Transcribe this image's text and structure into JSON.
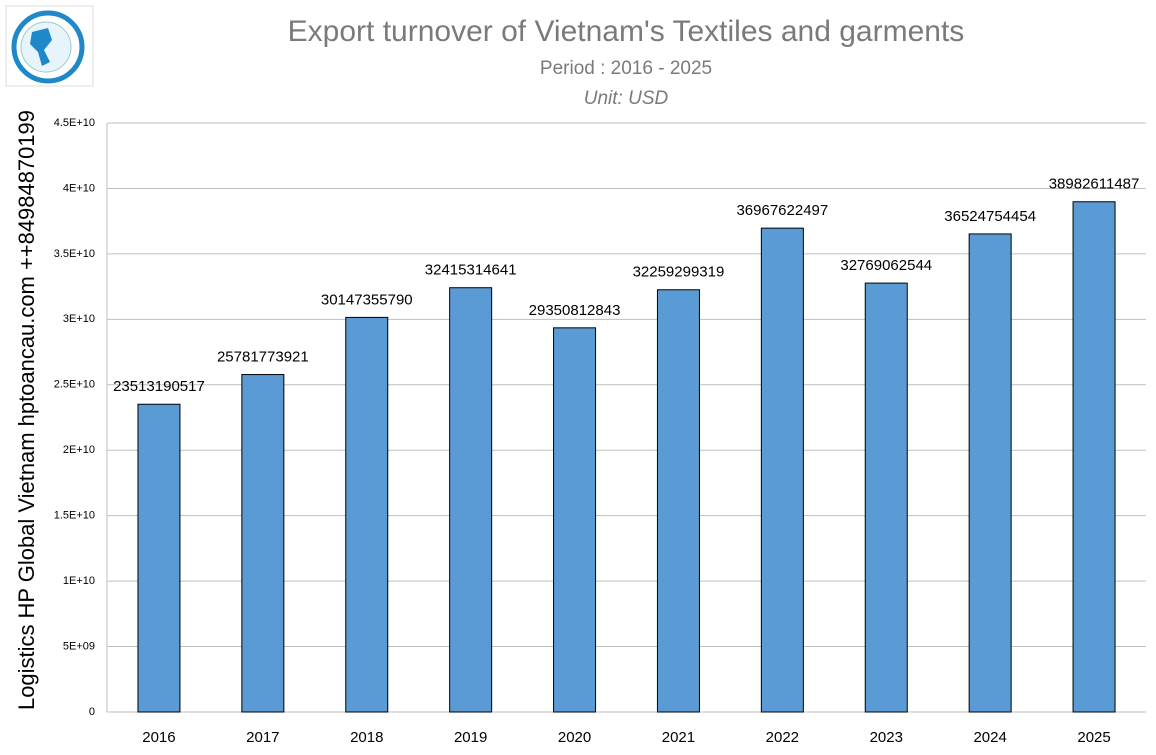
{
  "chart_data": {
    "type": "bar",
    "title": "Export turnover of Vietnam's Textiles and garments",
    "subtitle": "Period : 2016 - 2025",
    "unit": "Unit: USD",
    "y_label": "Logistics HP Global Vietnam hptoancau.com ++84984870199",
    "categories": [
      "2016",
      "2017",
      "2018",
      "2019",
      "2020",
      "2021",
      "2022",
      "2023",
      "2024",
      "2025"
    ],
    "values": [
      23513190517,
      25781773921,
      30147355790,
      32415314641,
      29350812843,
      32259299319,
      36967622497,
      32769062544,
      36524754454,
      38982611487
    ],
    "color": "#5b9bd5",
    "ylim": [
      0,
      45000000000
    ],
    "yticks": [
      0,
      {
        "value": 5000000000,
        "label": "5E+09"
      },
      {
        "value": 10000000000,
        "label": "1E+10"
      },
      {
        "value": 15000000000,
        "label": "1.5E+10"
      },
      {
        "value": 20000000000,
        "label": "2E+10"
      },
      {
        "value": 25000000000,
        "label": "2.5E+10"
      },
      {
        "value": 30000000000,
        "label": "3E+10"
      },
      {
        "value": 35000000000,
        "label": "3.5E+10"
      },
      {
        "value": 40000000000,
        "label": "4E+10"
      },
      {
        "value": 45000000000,
        "label": "4.5E+10"
      }
    ],
    "grid": true
  }
}
